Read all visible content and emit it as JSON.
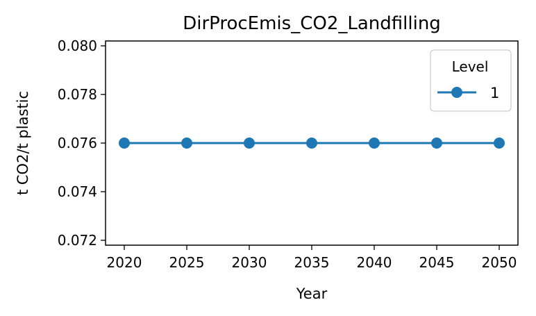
{
  "chart_data": {
    "type": "line",
    "title": "DirProcEmis_CO2_Landfilling",
    "xlabel": "Year",
    "ylabel": "t CO2/t plastic",
    "x": [
      2020,
      2025,
      2030,
      2035,
      2040,
      2045,
      2050
    ],
    "x_ticks": [
      "2020",
      "2025",
      "2030",
      "2035",
      "2040",
      "2045",
      "2050"
    ],
    "y_ticks": [
      "0.072",
      "0.074",
      "0.076",
      "0.078",
      "0.080"
    ],
    "xlim": [
      2018.5,
      2051.5
    ],
    "ylim": [
      0.0718,
      0.0802
    ],
    "grid": false,
    "legend": {
      "title": "Level",
      "placement": "top-right"
    },
    "series": [
      {
        "name": "1",
        "values": [
          0.076,
          0.076,
          0.076,
          0.076,
          0.076,
          0.076,
          0.076
        ],
        "color": "#1f77b4",
        "marker": "circle"
      }
    ]
  }
}
